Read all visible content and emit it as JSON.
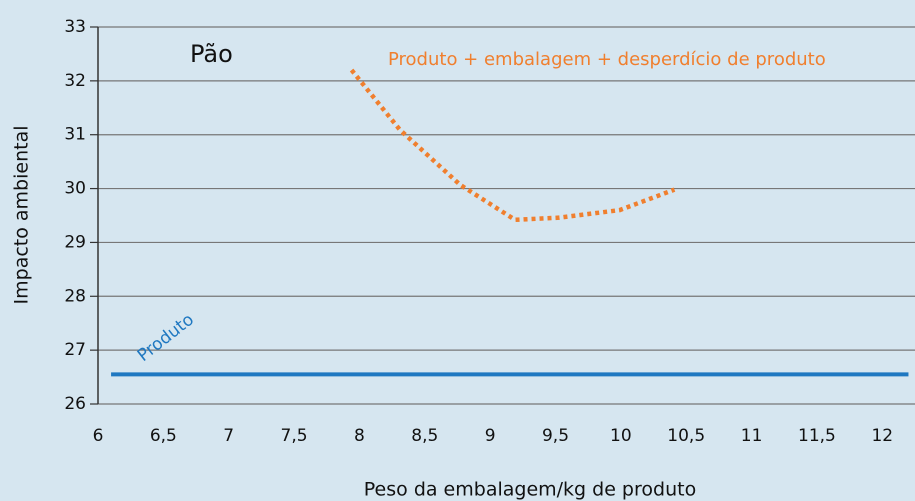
{
  "chart_data": {
    "type": "line",
    "title": "Pão",
    "xlabel": "Peso da embalagem/kg de produto",
    "ylabel": "Impacto ambiental",
    "xlim": [
      6,
      12.25
    ],
    "ylim": [
      26,
      33
    ],
    "xticks": [
      6,
      {
        "value": 6.5,
        "label": "6,5"
      },
      7,
      {
        "value": 7.5,
        "label": "7,5"
      },
      8,
      {
        "value": 8.5,
        "label": "8,5"
      },
      9,
      {
        "value": 9.5,
        "label": "9,5"
      },
      10,
      {
        "value": 10.5,
        "label": "10,5"
      },
      11,
      {
        "value": 11.5,
        "label": "11,5"
      },
      12
    ],
    "yticks": [
      26,
      27,
      28,
      29,
      30,
      31,
      32,
      33
    ],
    "grid": true,
    "series": [
      {
        "name": "Produto",
        "color": "#1f78c1",
        "style": "solid",
        "x": [
          6.1,
          12.2
        ],
        "values": [
          26.55,
          26.55
        ]
      },
      {
        "name": "Produto + embalagem + desperdício de produto",
        "color": "#f07f2e",
        "style": "dotted",
        "x": [
          7.94,
          8.31,
          8.77,
          9.19,
          9.53,
          9.99,
          10.41
        ],
        "values": [
          32.2,
          31.09,
          30.07,
          29.42,
          29.46,
          29.6,
          29.98
        ]
      }
    ]
  }
}
